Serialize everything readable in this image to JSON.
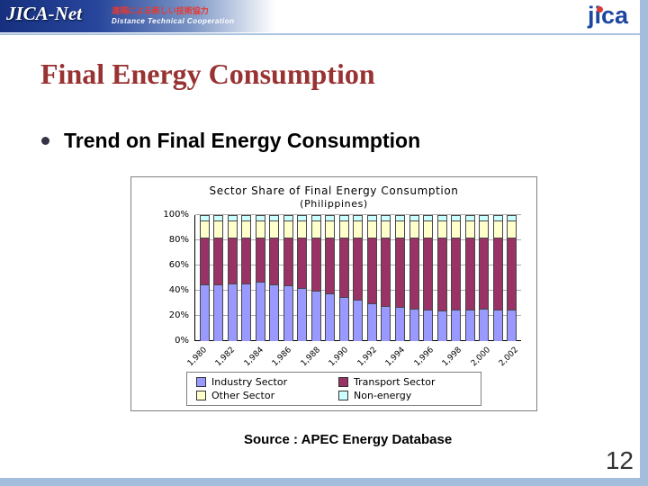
{
  "header": {
    "brand": "JICA-Net",
    "brand_sub_jp": "遠隔による新しい技術協力",
    "brand_sub_en": "Distance Technical Cooperation",
    "logo": "jica"
  },
  "slide": {
    "title": "Final Energy Consumption",
    "bullet": "Trend on Final Energy Consumption",
    "source": "Source : APEC Energy Database",
    "page_number": "12"
  },
  "chart_data": {
    "type": "bar",
    "stacked": true,
    "percent_stacked": true,
    "title": "Sector Share of Final Energy Consumption",
    "subtitle": "(Philippines)",
    "x": [
      1980,
      1981,
      1982,
      1983,
      1984,
      1985,
      1986,
      1987,
      1988,
      1989,
      1990,
      1991,
      1992,
      1993,
      1994,
      1995,
      1996,
      1997,
      1998,
      1999,
      2000,
      2001,
      2002
    ],
    "x_tick_labels": [
      "1,980",
      "1,982",
      "1,984",
      "1,986",
      "1,988",
      "1,990",
      "1,992",
      "1,994",
      "1,996",
      "1,998",
      "2,000",
      "2,002"
    ],
    "y_ticks": [
      0,
      20,
      40,
      60,
      80,
      100
    ],
    "y_tick_suffix": "%",
    "ylim": [
      0,
      100
    ],
    "grid": true,
    "legend_position": "bottom",
    "series": [
      {
        "name": "Industry Sector",
        "color": "#9999FF",
        "values": [
          45,
          45,
          46,
          46,
          47,
          45,
          44,
          42,
          40,
          38,
          35,
          33,
          30,
          28,
          27,
          26,
          25,
          24,
          25,
          25,
          26,
          25,
          25
        ]
      },
      {
        "name": "Transport Sector",
        "color": "#993366",
        "values": [
          37,
          37,
          36,
          36,
          35,
          37,
          38,
          40,
          42,
          44,
          47,
          49,
          52,
          54,
          55,
          56,
          57,
          58,
          57,
          57,
          56,
          57,
          57
        ]
      },
      {
        "name": "Other Sector",
        "color": "#FFFFCC",
        "values": [
          14,
          14,
          14,
          14,
          14,
          14,
          14,
          14,
          14,
          14,
          14,
          14,
          14,
          14,
          14,
          14,
          14,
          14,
          14,
          14,
          14,
          14,
          14
        ]
      },
      {
        "name": "Non-energy",
        "color": "#CCFFFF",
        "values": [
          4,
          4,
          4,
          4,
          4,
          4,
          4,
          4,
          4,
          4,
          4,
          4,
          4,
          4,
          4,
          4,
          4,
          4,
          4,
          4,
          4,
          4,
          4
        ]
      }
    ]
  },
  "theme": {
    "title_color": "#993333",
    "border_strip_color": "#A3BEDC",
    "header_gradient_start": "#16307E",
    "jica_logo_blue": "#1D47A0",
    "jica_logo_red": "#E03C31"
  }
}
